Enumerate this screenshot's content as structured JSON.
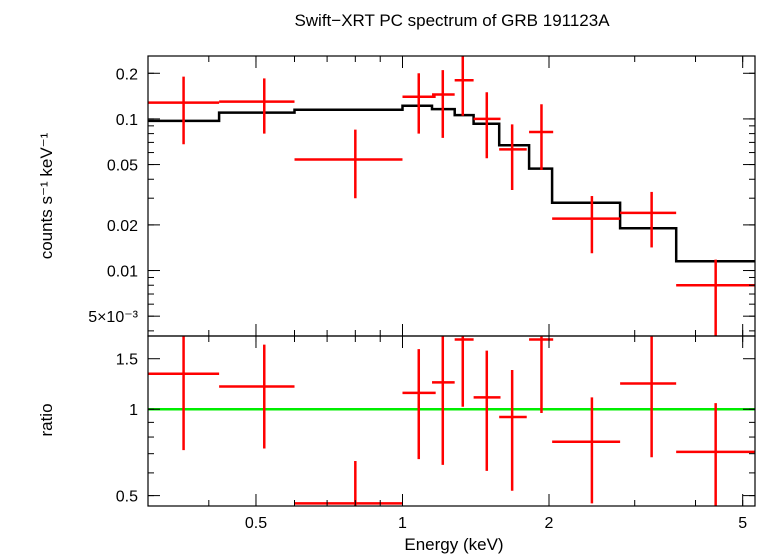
{
  "chart_data": [
    {
      "type": "step-with-errorbars",
      "panel": "spectrum",
      "title": "Swift−XRT PC spectrum of GRB 191123A",
      "ylabel": "counts s⁻¹ keV⁻¹",
      "xlabel": "",
      "xscale": "log",
      "yscale": "log",
      "xlim": [
        0.3,
        5.3
      ],
      "ylim": [
        0.0037,
        0.26
      ],
      "ytick_values": [
        0.2,
        0.1,
        0.05,
        0.02,
        0.01,
        0.005
      ],
      "ytick_labels": [
        "0.2",
        "0.1",
        "0.05",
        "0.02",
        "0.01",
        "5×10⁻³"
      ],
      "colors": {
        "data": "#ff0000",
        "model": "#000000"
      },
      "data_points": [
        {
          "x": 0.355,
          "xlo": 0.3,
          "xhi": 0.42,
          "y": 0.128,
          "ylo": 0.068,
          "yhi": 0.19
        },
        {
          "x": 0.52,
          "xlo": 0.42,
          "xhi": 0.6,
          "y": 0.13,
          "ylo": 0.08,
          "yhi": 0.185
        },
        {
          "x": 0.8,
          "xlo": 0.6,
          "xhi": 1.0,
          "y": 0.054,
          "ylo": 0.03,
          "yhi": 0.085
        },
        {
          "x": 1.08,
          "xlo": 1.0,
          "xhi": 1.17,
          "y": 0.14,
          "ylo": 0.08,
          "yhi": 0.2
        },
        {
          "x": 1.21,
          "xlo": 1.15,
          "xhi": 1.28,
          "y": 0.145,
          "ylo": 0.075,
          "yhi": 0.21
        },
        {
          "x": 1.33,
          "xlo": 1.28,
          "xhi": 1.4,
          "y": 0.18,
          "ylo": 0.105,
          "yhi": 0.26
        },
        {
          "x": 1.49,
          "xlo": 1.4,
          "xhi": 1.59,
          "y": 0.1,
          "ylo": 0.055,
          "yhi": 0.15
        },
        {
          "x": 1.68,
          "xlo": 1.58,
          "xhi": 1.8,
          "y": 0.063,
          "ylo": 0.034,
          "yhi": 0.092
        },
        {
          "x": 1.93,
          "xlo": 1.82,
          "xhi": 2.04,
          "y": 0.082,
          "ylo": 0.046,
          "yhi": 0.125
        },
        {
          "x": 2.45,
          "xlo": 2.03,
          "xhi": 2.8,
          "y": 0.022,
          "ylo": 0.013,
          "yhi": 0.031
        },
        {
          "x": 3.25,
          "xlo": 2.8,
          "xhi": 3.65,
          "y": 0.024,
          "ylo": 0.0142,
          "yhi": 0.033
        },
        {
          "x": 4.4,
          "xlo": 3.65,
          "xhi": 5.3,
          "y": 0.008,
          "ylo": 0.0037,
          "yhi": 0.0118
        }
      ],
      "model_steps": [
        {
          "xlo": 0.3,
          "xhi": 0.42,
          "y": 0.097
        },
        {
          "xlo": 0.42,
          "xhi": 0.6,
          "y": 0.11
        },
        {
          "xlo": 0.6,
          "xhi": 1.0,
          "y": 0.115
        },
        {
          "xlo": 1.0,
          "xhi": 1.15,
          "y": 0.122
        },
        {
          "xlo": 1.15,
          "xhi": 1.28,
          "y": 0.116
        },
        {
          "xlo": 1.28,
          "xhi": 1.4,
          "y": 0.106
        },
        {
          "xlo": 1.4,
          "xhi": 1.58,
          "y": 0.093
        },
        {
          "xlo": 1.58,
          "xhi": 1.82,
          "y": 0.067
        },
        {
          "xlo": 1.82,
          "xhi": 2.03,
          "y": 0.047
        },
        {
          "xlo": 2.03,
          "xhi": 2.8,
          "y": 0.028
        },
        {
          "xlo": 2.8,
          "xhi": 3.65,
          "y": 0.019
        },
        {
          "xlo": 3.65,
          "xhi": 5.3,
          "y": 0.0115
        }
      ]
    },
    {
      "type": "errorbars",
      "panel": "ratio",
      "ylabel": "ratio",
      "xlabel": "Energy (keV)",
      "xscale": "log",
      "yscale": "log",
      "xlim": [
        0.3,
        5.3
      ],
      "ylim": [
        0.46,
        1.8
      ],
      "ytick_values": [
        1.5,
        1,
        0.5
      ],
      "ytick_labels": [
        "1.5",
        "1",
        "0.5"
      ],
      "xtick_values": [
        0.5,
        1,
        2,
        5
      ],
      "xtick_labels": [
        "0.5",
        "1",
        "2",
        "5"
      ],
      "reference_line": 1,
      "colors": {
        "data": "#ff0000",
        "reference": "#00ee00"
      },
      "data_points": [
        {
          "x": 0.355,
          "xlo": 0.3,
          "xhi": 0.42,
          "y": 1.33,
          "ylo": 0.72,
          "yhi": 1.8
        },
        {
          "x": 0.52,
          "xlo": 0.42,
          "xhi": 0.6,
          "y": 1.2,
          "ylo": 0.73,
          "yhi": 1.68
        },
        {
          "x": 0.8,
          "xlo": 0.6,
          "xhi": 1.0,
          "y": 0.47,
          "ylo": 0.46,
          "yhi": 0.66
        },
        {
          "x": 1.08,
          "xlo": 1.0,
          "xhi": 1.17,
          "y": 1.14,
          "ylo": 0.67,
          "yhi": 1.62
        },
        {
          "x": 1.21,
          "xlo": 1.15,
          "xhi": 1.28,
          "y": 1.24,
          "ylo": 0.64,
          "yhi": 1.8
        },
        {
          "x": 1.33,
          "xlo": 1.28,
          "xhi": 1.4,
          "y": 1.75,
          "ylo": 1.02,
          "yhi": 1.8
        },
        {
          "x": 1.49,
          "xlo": 1.4,
          "xhi": 1.59,
          "y": 1.1,
          "ylo": 0.61,
          "yhi": 1.6
        },
        {
          "x": 1.68,
          "xlo": 1.58,
          "xhi": 1.8,
          "y": 0.94,
          "ylo": 0.52,
          "yhi": 1.37
        },
        {
          "x": 1.93,
          "xlo": 1.82,
          "xhi": 2.04,
          "y": 1.75,
          "ylo": 0.97,
          "yhi": 1.8
        },
        {
          "x": 2.45,
          "xlo": 2.03,
          "xhi": 2.8,
          "y": 0.77,
          "ylo": 0.47,
          "yhi": 1.1
        },
        {
          "x": 3.25,
          "xlo": 2.8,
          "xhi": 3.65,
          "y": 1.23,
          "ylo": 0.68,
          "yhi": 1.8
        },
        {
          "x": 4.4,
          "xlo": 3.65,
          "xhi": 5.3,
          "y": 0.71,
          "ylo": 0.46,
          "yhi": 1.05
        }
      ]
    }
  ]
}
